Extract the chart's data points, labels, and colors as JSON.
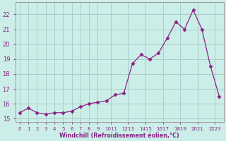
{
  "x": [
    0,
    1,
    2,
    3,
    4,
    5,
    6,
    7,
    8,
    9,
    10,
    11,
    12,
    13,
    14,
    15,
    16,
    17,
    18,
    19,
    20,
    21,
    22,
    23
  ],
  "y": [
    15.4,
    15.7,
    15.4,
    15.3,
    15.4,
    15.4,
    15.5,
    15.8,
    16.0,
    16.1,
    16.2,
    16.6,
    16.7,
    18.7,
    19.3,
    19.0,
    19.4,
    20.4,
    21.5,
    21.0,
    22.3,
    21.0,
    18.5,
    16.5
  ],
  "line_color": "#882288",
  "marker": "D",
  "marker_size": 2.5,
  "bg_color": "#cceee8",
  "grid_color": "#aacccc",
  "xlabel": "Windchill (Refroidissement éolien,°C)",
  "xlabel_color": "#882288",
  "tick_color": "#882288",
  "ylim": [
    14.8,
    22.8
  ],
  "xlim": [
    -0.5,
    23.5
  ],
  "yticks": [
    15,
    16,
    17,
    18,
    19,
    20,
    21,
    22
  ],
  "xtick_labels": [
    "0",
    "1",
    "2",
    "3",
    "4",
    "5",
    "6",
    "7",
    "8",
    "9",
    "1011",
    "1213",
    "1415",
    "1617",
    "1819",
    "2021",
    "2223"
  ],
  "xticks": [
    0,
    1,
    2,
    3,
    4,
    5,
    6,
    7,
    8,
    9,
    10.5,
    12.5,
    14.5,
    16.5,
    18.5,
    20.5,
    22.5
  ]
}
